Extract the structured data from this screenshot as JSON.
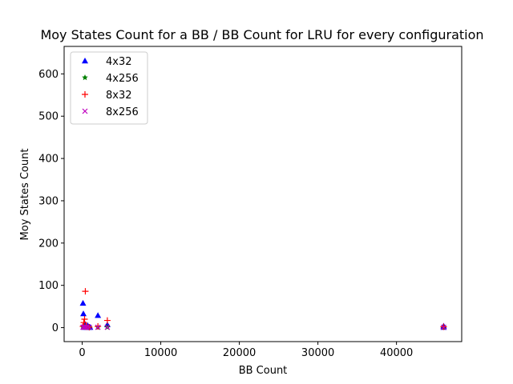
{
  "chart_data": {
    "type": "scatter",
    "title": "Moy States Count for a BB / BB Count for LRU for every configuration",
    "xlabel": "BB Count",
    "ylabel": "Moy States Count",
    "xlim": [
      -2300,
      48300
    ],
    "ylim": [
      -33,
      665
    ],
    "xticks": [
      0,
      10000,
      20000,
      30000,
      40000
    ],
    "xtick_labels": [
      "0",
      "10000",
      "20000",
      "30000",
      "40000"
    ],
    "yticks": [
      0,
      100,
      200,
      300,
      400,
      500,
      600
    ],
    "ytick_labels": [
      "0",
      "100",
      "200",
      "300",
      "400",
      "500",
      "600"
    ],
    "grid": false,
    "legend_position": "top-left",
    "series": [
      {
        "name": "4x32",
        "marker": "triangle",
        "color": "#0000ff",
        "x": [
          100,
          150,
          200,
          250,
          300,
          350,
          400,
          500,
          600,
          700,
          900,
          1000,
          2000,
          3200,
          46000,
          46000
        ],
        "y": [
          58,
          33,
          2,
          4,
          1,
          3,
          8,
          2,
          1,
          5,
          1,
          1,
          29,
          7,
          4,
          1
        ]
      },
      {
        "name": "4x256",
        "marker": "star",
        "color": "#008000",
        "x": [
          100,
          200,
          300,
          400,
          600,
          900,
          2000,
          3200,
          46000
        ],
        "y": [
          1,
          1,
          2,
          1,
          1,
          1,
          1,
          1,
          1
        ]
      },
      {
        "name": "8x32",
        "marker": "plus",
        "color": "#ff0000",
        "x": [
          100,
          200,
          300,
          400,
          500,
          600,
          900,
          2000,
          3200,
          46000
        ],
        "y": [
          3,
          12,
          20,
          86,
          5,
          2,
          1,
          3,
          17,
          2
        ]
      },
      {
        "name": "8x256",
        "marker": "x",
        "color": "#bf00bf",
        "x": [
          100,
          200,
          300,
          400,
          600,
          900,
          2000,
          3200,
          46000
        ],
        "y": [
          1,
          1,
          2,
          1,
          1,
          1,
          1,
          1,
          1
        ]
      }
    ]
  }
}
